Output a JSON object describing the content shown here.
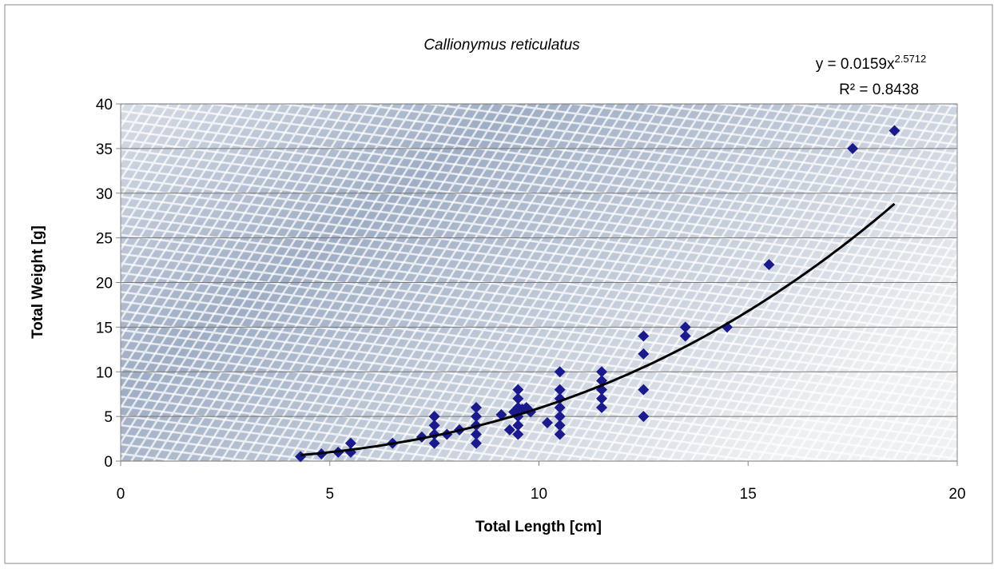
{
  "chart_data": {
    "type": "scatter",
    "title": "Callionymus reticulatus",
    "x_label": "Total Length [cm]",
    "y_label": "Total Weight [g]",
    "xlim": [
      0,
      20
    ],
    "xticks": [
      0,
      5,
      10,
      15,
      20
    ],
    "ylim": [
      0,
      40
    ],
    "yticks": [
      0,
      5,
      10,
      15,
      20,
      25,
      30,
      35,
      40
    ],
    "grid": true,
    "color": "#1a1a8c",
    "x": [
      4.3,
      4.8,
      5.2,
      5.5,
      5.5,
      6.5,
      7.2,
      7.5,
      7.5,
      7.5,
      7.5,
      7.8,
      8.1,
      8.5,
      8.5,
      8.5,
      8.5,
      8.5,
      9.1,
      9.3,
      9.4,
      9.5,
      9.5,
      9.5,
      9.5,
      9.5,
      9.5,
      9.6,
      9.7,
      9.8,
      10.2,
      10.5,
      10.5,
      10.5,
      10.5,
      10.5,
      10.5,
      10.5,
      11.5,
      11.5,
      11.5,
      11.5,
      11.5,
      12.5,
      12.5,
      12.5,
      12.5,
      13.5,
      13.5,
      14.5,
      15.5,
      17.5,
      18.5
    ],
    "values": [
      0.5,
      0.8,
      1,
      1,
      2,
      2,
      2.7,
      2,
      3,
      4,
      5,
      3,
      3.5,
      2,
      3,
      4,
      5,
      6,
      5.2,
      3.5,
      5.5,
      3,
      4,
      5,
      6,
      7,
      8,
      5.8,
      6,
      5.5,
      4.3,
      3,
      4,
      5,
      6,
      7,
      8,
      10,
      6,
      7,
      8,
      9,
      10,
      5,
      8,
      12,
      14,
      14,
      15,
      15,
      22,
      35,
      37
    ],
    "trendline": {
      "coefficient": 0.0159,
      "exponent": 2.5712,
      "equation": "y = 0.0159x",
      "equation_superscript": "2.5712",
      "r_squared": "R² = 0.8438"
    }
  }
}
